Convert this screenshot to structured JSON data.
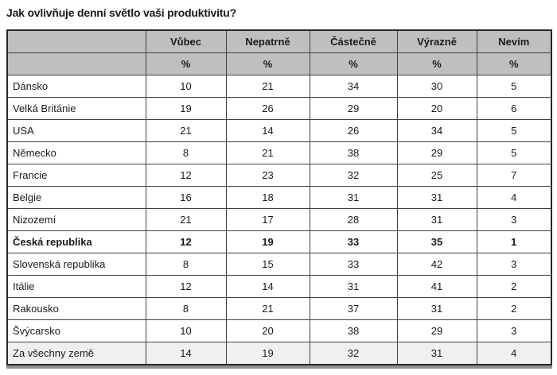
{
  "page_title": "Jak ovlivňuje denní světlo vaši produktivitu?",
  "chart_data": {
    "type": "table",
    "title": "Jak ovlivňuje denní světlo vaši produktivitu?",
    "columns": [
      "Vůbec",
      "Nepatrně",
      "Částečně",
      "Výrazně",
      "Nevím"
    ],
    "unit": "%",
    "unit_row": [
      "%",
      "%",
      "%",
      "%",
      "%"
    ],
    "rows": [
      {
        "label": "Dánsko",
        "values": [
          10,
          21,
          34,
          30,
          5
        ],
        "bold": false,
        "summary": false
      },
      {
        "label": "Velká Británie",
        "values": [
          19,
          26,
          29,
          20,
          6
        ],
        "bold": false,
        "summary": false
      },
      {
        "label": "USA",
        "values": [
          21,
          14,
          26,
          34,
          5
        ],
        "bold": false,
        "summary": false
      },
      {
        "label": "Německo",
        "values": [
          8,
          21,
          38,
          29,
          5
        ],
        "bold": false,
        "summary": false
      },
      {
        "label": "Francie",
        "values": [
          12,
          23,
          32,
          25,
          7
        ],
        "bold": false,
        "summary": false
      },
      {
        "label": "Belgie",
        "values": [
          16,
          18,
          31,
          31,
          4
        ],
        "bold": false,
        "summary": false
      },
      {
        "label": "Nizozemí",
        "values": [
          21,
          17,
          28,
          31,
          3
        ],
        "bold": false,
        "summary": false
      },
      {
        "label": "Česká republika",
        "values": [
          12,
          19,
          33,
          35,
          1
        ],
        "bold": true,
        "summary": false
      },
      {
        "label": "Slovenská republika",
        "values": [
          8,
          15,
          33,
          42,
          3
        ],
        "bold": false,
        "summary": false
      },
      {
        "label": "Itálie",
        "values": [
          12,
          14,
          31,
          41,
          2
        ],
        "bold": false,
        "summary": false
      },
      {
        "label": "Rakousko",
        "values": [
          8,
          21,
          37,
          31,
          2
        ],
        "bold": false,
        "summary": false
      },
      {
        "label": "Švýcarsko",
        "values": [
          10,
          20,
          38,
          29,
          3
        ],
        "bold": false,
        "summary": false
      },
      {
        "label": "Za všechny země",
        "values": [
          14,
          19,
          32,
          31,
          4
        ],
        "bold": false,
        "summary": true
      }
    ],
    "emphasized_row": "Česká republika",
    "summary_row": "Za všechny země"
  },
  "colors": {
    "header_bg": "#bfbfbf",
    "summary_row_bg": "#f0f0f0",
    "grid_border": "#404040",
    "outer_border": "#262626",
    "bottom_bar": "#909090",
    "text": "#1a1a1a"
  }
}
